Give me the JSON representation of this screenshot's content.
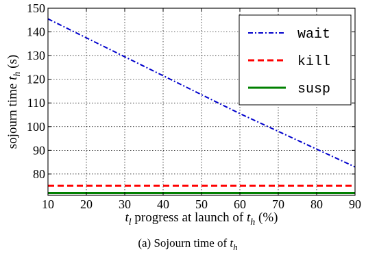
{
  "chart_data": {
    "type": "line",
    "x": [
      10,
      20,
      30,
      40,
      50,
      60,
      70,
      80,
      90
    ],
    "series": [
      {
        "name": "wait",
        "color": "#0000cc",
        "style": "dash-dot",
        "values": [
          145.5,
          137.5,
          129.5,
          121.5,
          113.5,
          105.5,
          98,
          90.5,
          83
        ]
      },
      {
        "name": "kill",
        "color": "#ff0000",
        "style": "dashed",
        "values": [
          75,
          75,
          75,
          75,
          75,
          75,
          75,
          75,
          75
        ]
      },
      {
        "name": "susp",
        "color": "#008000",
        "style": "solid",
        "values": [
          72,
          72,
          72,
          72,
          72,
          72,
          72,
          72,
          72
        ]
      }
    ],
    "xlim": [
      10,
      90
    ],
    "ylim": [
      71,
      150
    ],
    "xticks": [
      10,
      20,
      30,
      40,
      50,
      60,
      70,
      80,
      90
    ],
    "yticks": [
      80,
      90,
      100,
      110,
      120,
      130,
      140,
      150
    ],
    "grid": true,
    "legend_position": "top-right",
    "ylabel_parts": {
      "pre": "sojourn time ",
      "var": "t",
      "sub": "h",
      "post": " (s)"
    },
    "xlabel_parts": {
      "var1": "t",
      "sub1": "l",
      "mid": " progress at launch of ",
      "var2": "t",
      "sub2": "h",
      "post": " (%)"
    },
    "caption_parts": {
      "pre": "(a) Sojourn time of ",
      "var": "t",
      "sub": "h"
    }
  }
}
